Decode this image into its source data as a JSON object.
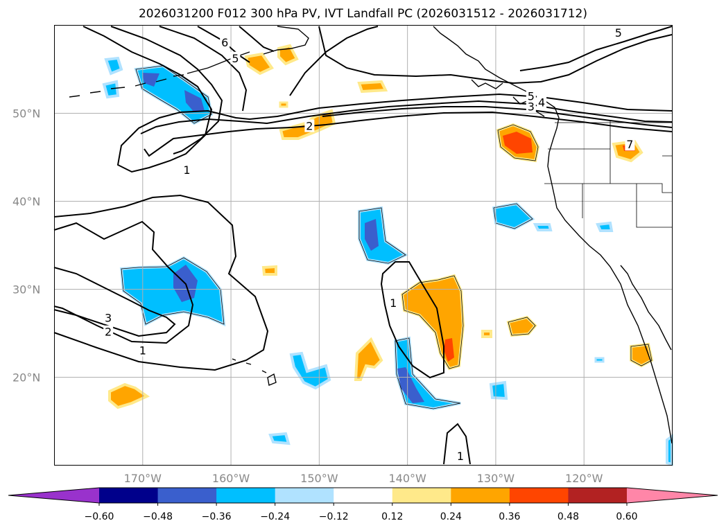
{
  "title": "2026031200 F012 300 hPa PV, IVT Landfall PC (2026031512 - 2026031712)",
  "map": {
    "projection": "PlateCarree",
    "extent": {
      "lon_min": -180,
      "lon_max": -110,
      "lat_min": 10,
      "lat_max": 60
    },
    "lon_ticks": [
      {
        "value": -170,
        "label": "170°W"
      },
      {
        "value": -160,
        "label": "160°W"
      },
      {
        "value": -150,
        "label": "150°W"
      },
      {
        "value": -140,
        "label": "140°W"
      },
      {
        "value": -130,
        "label": "130°W"
      },
      {
        "value": -120,
        "label": "120°W"
      }
    ],
    "lat_ticks": [
      {
        "value": 50,
        "label": "50°N"
      },
      {
        "value": 40,
        "label": "40°N"
      },
      {
        "value": 30,
        "label": "30°N"
      },
      {
        "value": 20,
        "label": "20°N"
      }
    ],
    "pv_contour_labels": [
      {
        "text": "6",
        "lon": -160.7,
        "lat": 58.0
      },
      {
        "text": "5",
        "lon": -159.5,
        "lat": 56.2
      },
      {
        "text": "2",
        "lon": -151.1,
        "lat": 48.5
      },
      {
        "text": "1",
        "lon": -165.0,
        "lat": 43.5
      },
      {
        "text": "5",
        "lon": -126.0,
        "lat": 51.9
      },
      {
        "text": "4",
        "lon": -124.8,
        "lat": 51.2
      },
      {
        "text": "3",
        "lon": -126.0,
        "lat": 50.7
      },
      {
        "text": "5",
        "lon": -116.1,
        "lat": 59.1
      },
      {
        "text": "7",
        "lon": -114.8,
        "lat": 46.4
      },
      {
        "text": "3",
        "lon": -173.9,
        "lat": 26.7
      },
      {
        "text": "2",
        "lon": -173.9,
        "lat": 25.1
      },
      {
        "text": "1",
        "lon": -170.0,
        "lat": 23.0
      },
      {
        "text": "1",
        "lon": -141.6,
        "lat": 28.4
      },
      {
        "text": "1",
        "lon": -134.0,
        "lat": 11.0
      }
    ]
  },
  "colorbar": {
    "ticks": [
      "−0.60",
      "−0.48",
      "−0.36",
      "−0.24",
      "−0.12",
      "0.12",
      "0.24",
      "0.36",
      "0.48",
      "0.60"
    ],
    "colors": {
      "under": "#9932cc",
      "bins": [
        "#00008b",
        "#3a5fcd",
        "#00bfff",
        "#b0e2ff",
        "#ffffff",
        "#ffe98a",
        "#ffa500",
        "#ff4500",
        "#b22222"
      ],
      "over": "#ff86a8"
    }
  }
}
